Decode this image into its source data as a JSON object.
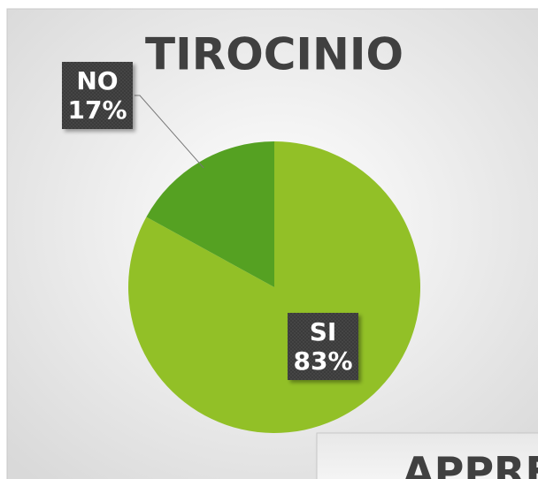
{
  "chart_data": {
    "type": "pie",
    "title": "TIROCINIO",
    "categories": [
      "SI",
      "NO"
    ],
    "values": [
      83,
      17
    ],
    "value_labels": [
      "83%",
      "17%"
    ],
    "colors": [
      "#92c027",
      "#55a122"
    ]
  },
  "second_panel": {
    "title": "APPRE"
  }
}
